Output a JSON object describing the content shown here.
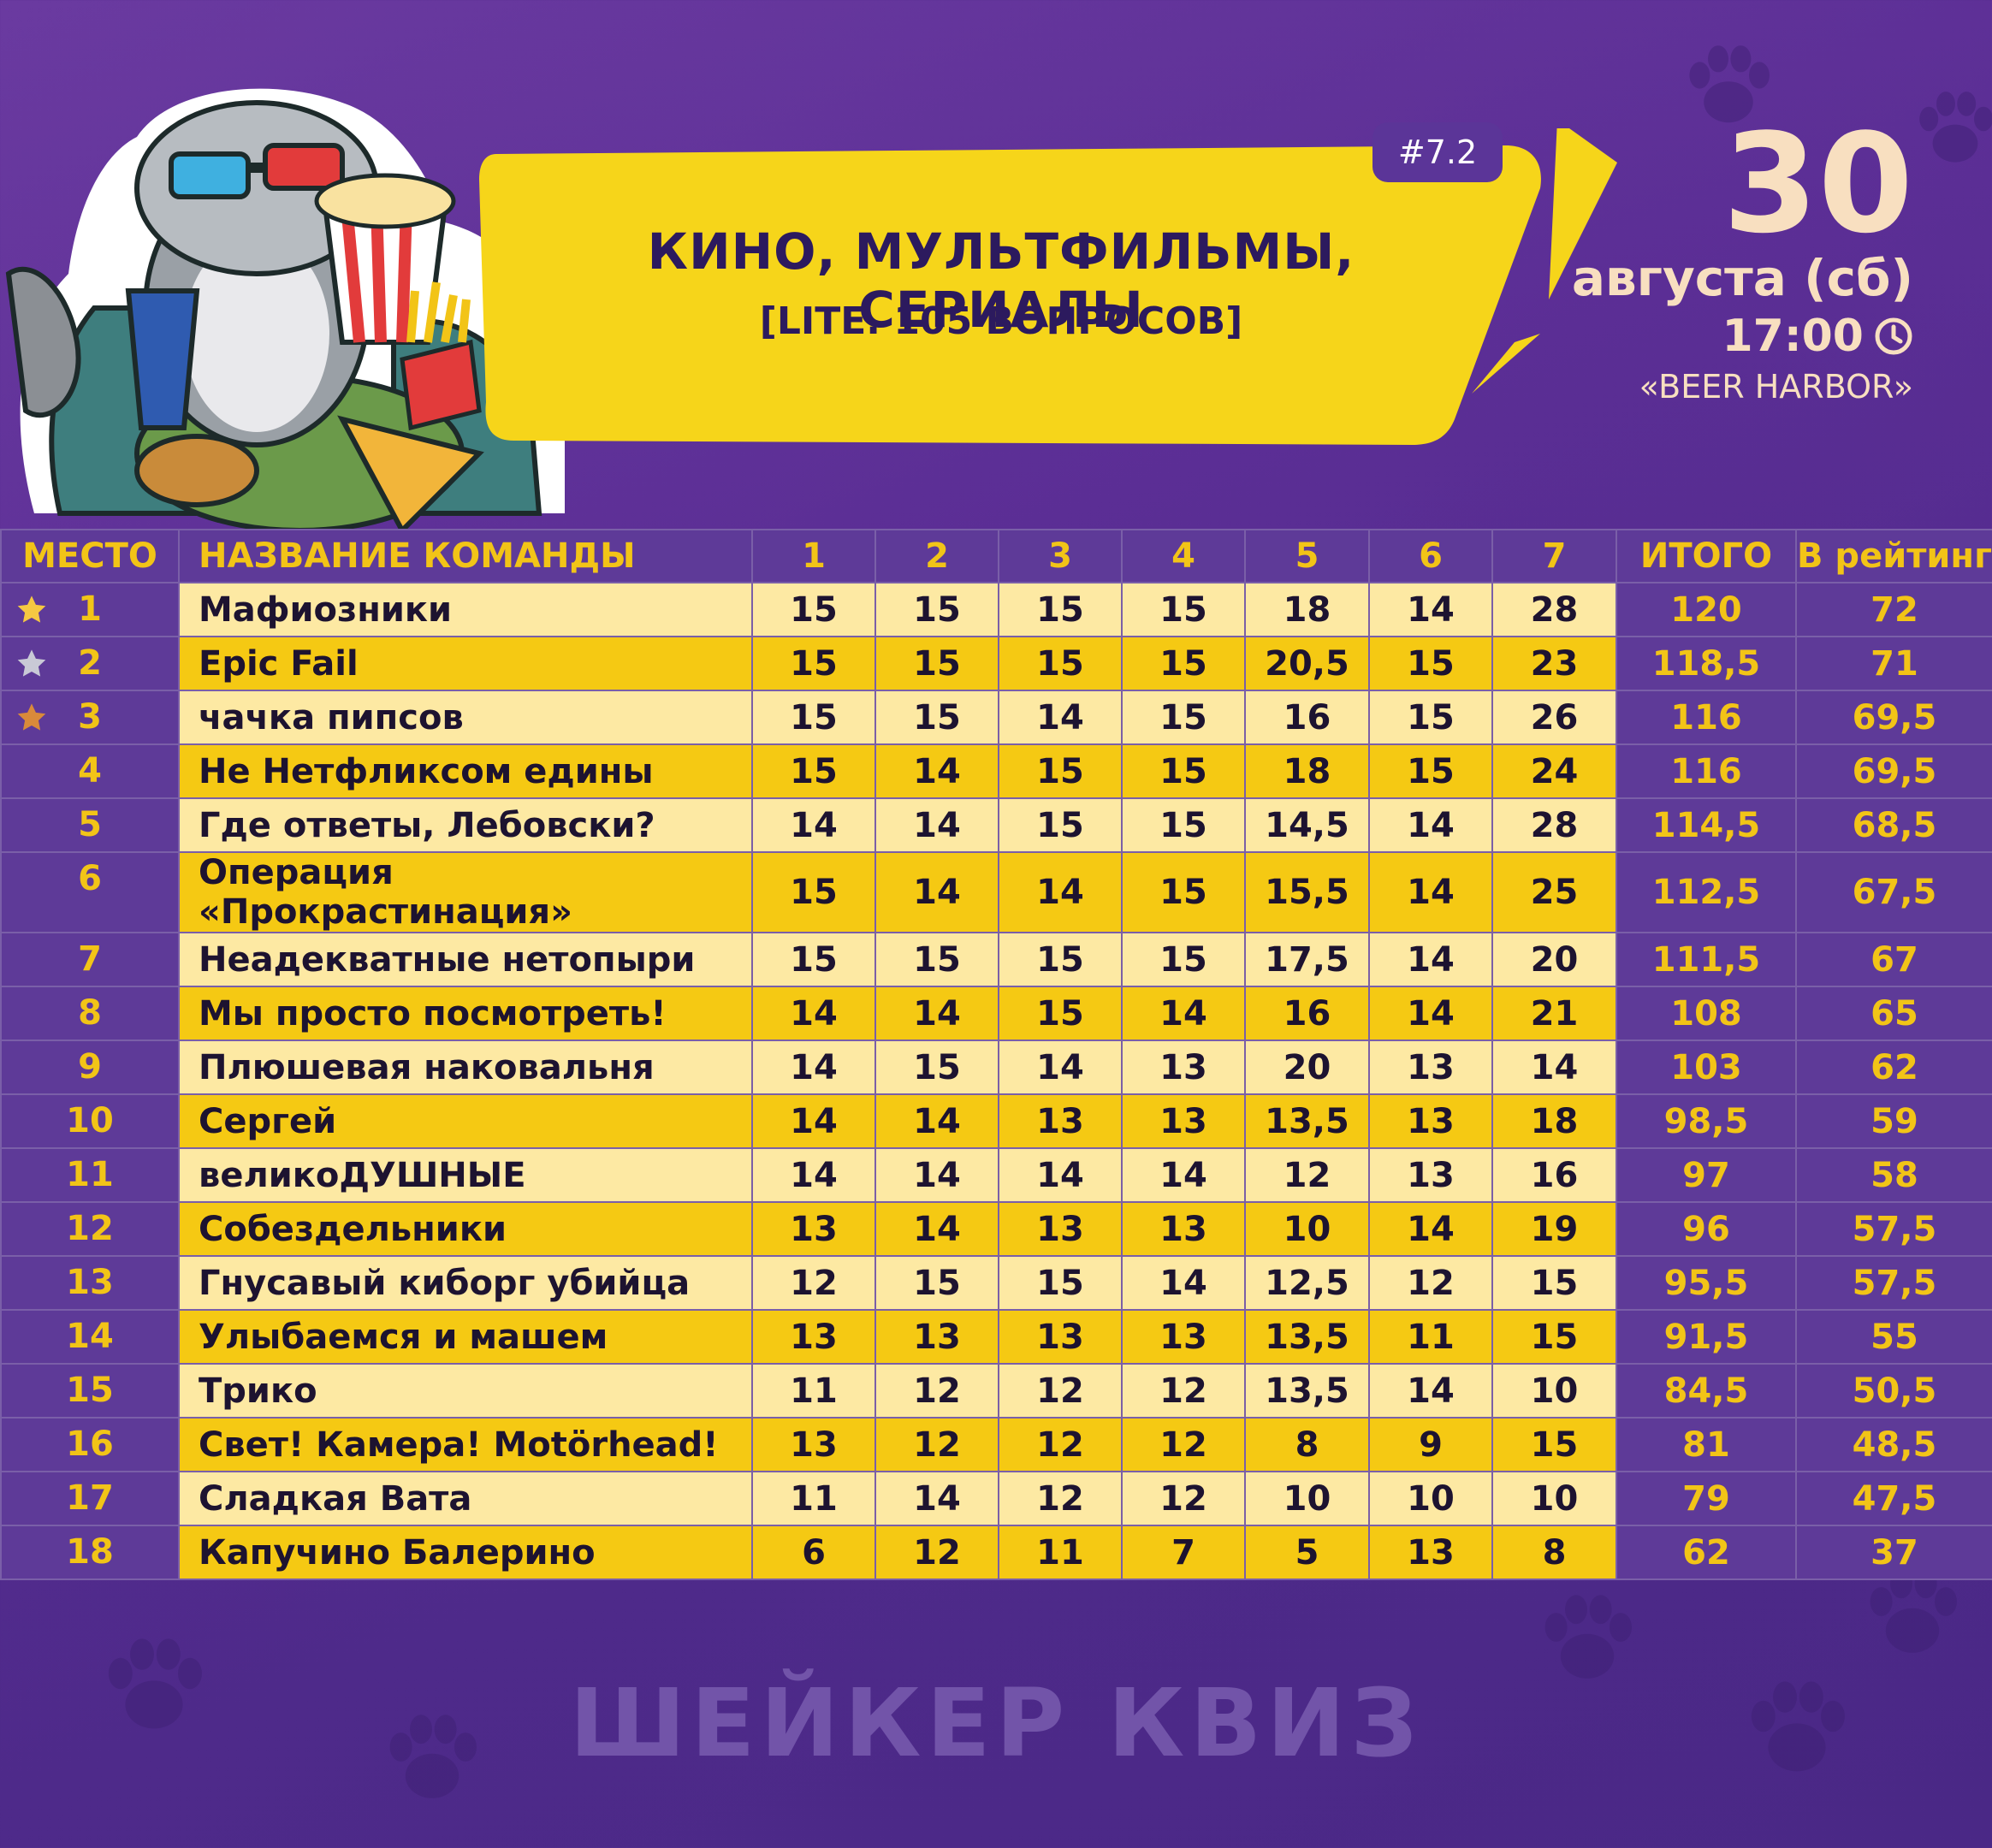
{
  "header": {
    "badge": "#7.2",
    "title": "КИНО, МУЛЬТФИЛЬМЫ, СЕРИАЛЫ",
    "subtitle": "[LITE. 105 ВОПРОСОВ]",
    "date_day": "30",
    "date_month": "августа (сб)",
    "time": "17:00",
    "venue": "«BEER HARBOR»"
  },
  "table": {
    "headers": [
      "МЕСТО",
      "НАЗВАНИЕ КОМАНДЫ",
      "1",
      "2",
      "3",
      "4",
      "5",
      "6",
      "7",
      "ИТОГО",
      "В рейтинг"
    ],
    "rows": [
      {
        "place": "1",
        "team": "Мафиозники",
        "scores": [
          "15",
          "15",
          "15",
          "15",
          "18",
          "14",
          "28"
        ],
        "total": "120",
        "rating": "72",
        "medal": "gold"
      },
      {
        "place": "2",
        "team": "Epic Fail",
        "scores": [
          "15",
          "15",
          "15",
          "15",
          "20,5",
          "15",
          "23"
        ],
        "total": "118,5",
        "rating": "71",
        "medal": "silver"
      },
      {
        "place": "3",
        "team": "чачка пипсов",
        "scores": [
          "15",
          "15",
          "14",
          "15",
          "16",
          "15",
          "26"
        ],
        "total": "116",
        "rating": "69,5",
        "medal": "bronze"
      },
      {
        "place": "4",
        "team": "Не Нетфликсом едины",
        "scores": [
          "15",
          "14",
          "15",
          "15",
          "18",
          "15",
          "24"
        ],
        "total": "116",
        "rating": "69,5"
      },
      {
        "place": "5",
        "team": "Где ответы, Лебовски?",
        "scores": [
          "14",
          "14",
          "15",
          "15",
          "14,5",
          "14",
          "28"
        ],
        "total": "114,5",
        "rating": "68,5"
      },
      {
        "place": "6",
        "team": "Операция «Прокрастинация»",
        "scores": [
          "15",
          "14",
          "14",
          "15",
          "15,5",
          "14",
          "25"
        ],
        "total": "112,5",
        "rating": "67,5"
      },
      {
        "place": "7",
        "team": "Неадекватные нетопыри",
        "scores": [
          "15",
          "15",
          "15",
          "15",
          "17,5",
          "14",
          "20"
        ],
        "total": "111,5",
        "rating": "67"
      },
      {
        "place": "8",
        "team": "Мы просто посмотреть!",
        "scores": [
          "14",
          "14",
          "15",
          "14",
          "16",
          "14",
          "21"
        ],
        "total": "108",
        "rating": "65"
      },
      {
        "place": "9",
        "team": "Плюшевая наковальня",
        "scores": [
          "14",
          "15",
          "14",
          "13",
          "20",
          "13",
          "14"
        ],
        "total": "103",
        "rating": "62"
      },
      {
        "place": "10",
        "team": "Сергей",
        "scores": [
          "14",
          "14",
          "13",
          "13",
          "13,5",
          "13",
          "18"
        ],
        "total": "98,5",
        "rating": "59"
      },
      {
        "place": "11",
        "team": "великоДУШНЫЕ",
        "scores": [
          "14",
          "14",
          "14",
          "14",
          "12",
          "13",
          "16"
        ],
        "total": "97",
        "rating": "58"
      },
      {
        "place": "12",
        "team": "Собездельники",
        "scores": [
          "13",
          "14",
          "13",
          "13",
          "10",
          "14",
          "19"
        ],
        "total": "96",
        "rating": "57,5"
      },
      {
        "place": "13",
        "team": "Гнусавый киборг убийца",
        "scores": [
          "12",
          "15",
          "15",
          "14",
          "12,5",
          "12",
          "15"
        ],
        "total": "95,5",
        "rating": "57,5"
      },
      {
        "place": "14",
        "team": "Улыбаемся и машем",
        "scores": [
          "13",
          "13",
          "13",
          "13",
          "13,5",
          "11",
          "15"
        ],
        "total": "91,5",
        "rating": "55"
      },
      {
        "place": "15",
        "team": "Трико",
        "scores": [
          "11",
          "12",
          "12",
          "12",
          "13,5",
          "14",
          "10"
        ],
        "total": "84,5",
        "rating": "50,5"
      },
      {
        "place": "16",
        "team": "Свет! Камера! Motörhead!",
        "scores": [
          "13",
          "12",
          "12",
          "12",
          "8",
          "9",
          "15"
        ],
        "total": "81",
        "rating": "48,5"
      },
      {
        "place": "17",
        "team": "Сладкая Вата",
        "scores": [
          "11",
          "14",
          "12",
          "12",
          "10",
          "10",
          "10"
        ],
        "total": "79",
        "rating": "47,5"
      },
      {
        "place": "18",
        "team": "Капучино Балерино",
        "scores": [
          "6",
          "12",
          "11",
          "7",
          "5",
          "13",
          "8"
        ],
        "total": "62",
        "rating": "37"
      }
    ]
  },
  "footer": {
    "logo_text": "ШЕЙКЕР КВИЗ"
  },
  "colors": {
    "background": "#5b2e95",
    "header_text": "#f2c417",
    "row_light": "#fde9a3",
    "row_dark": "#f5c913",
    "gold": "#f5c842",
    "silver": "#c9c9d6",
    "bronze": "#d98a3a"
  },
  "icons": {
    "clock": "clock-icon",
    "star": "star-icon",
    "paw": "paw-icon"
  }
}
